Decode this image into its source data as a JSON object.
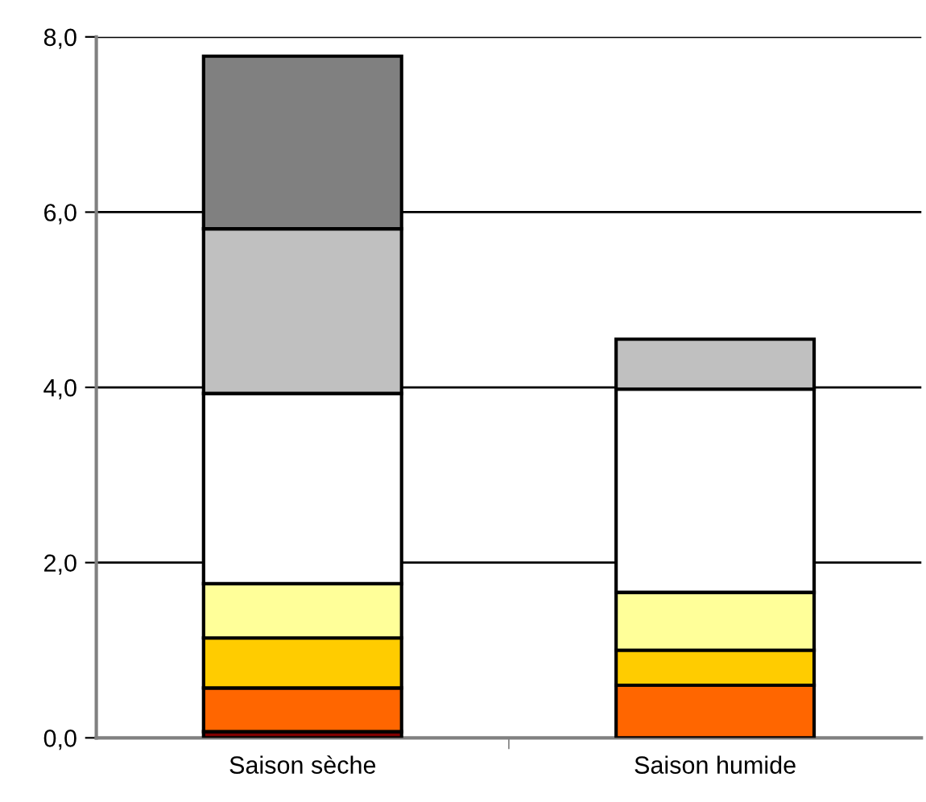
{
  "chart_data": {
    "type": "bar",
    "stacked": true,
    "categories": [
      "Saison sèche",
      "Saison humide"
    ],
    "series": [
      {
        "color": "#800000",
        "values": [
          0.07,
          null
        ]
      },
      {
        "color": "#ff6600",
        "values": [
          0.5,
          0.6
        ]
      },
      {
        "color": "#ffcc00",
        "values": [
          0.57,
          0.4
        ]
      },
      {
        "color": "#ffff99",
        "values": [
          0.62,
          0.66
        ]
      },
      {
        "color": "#ffffff",
        "values": [
          2.17,
          2.32
        ]
      },
      {
        "color": "#c0c0c0",
        "values": [
          1.88,
          0.57
        ]
      },
      {
        "color": "#808080",
        "values": [
          1.97,
          null
        ]
      }
    ],
    "ylim": [
      0,
      8
    ],
    "yticks": [
      {
        "value": 0,
        "label": "0,0"
      },
      {
        "value": 2,
        "label": "2,0"
      },
      {
        "value": 4,
        "label": "4,0"
      },
      {
        "value": 6,
        "label": "6,0"
      },
      {
        "value": 8,
        "label": "8,0"
      }
    ],
    "grid": "y"
  }
}
